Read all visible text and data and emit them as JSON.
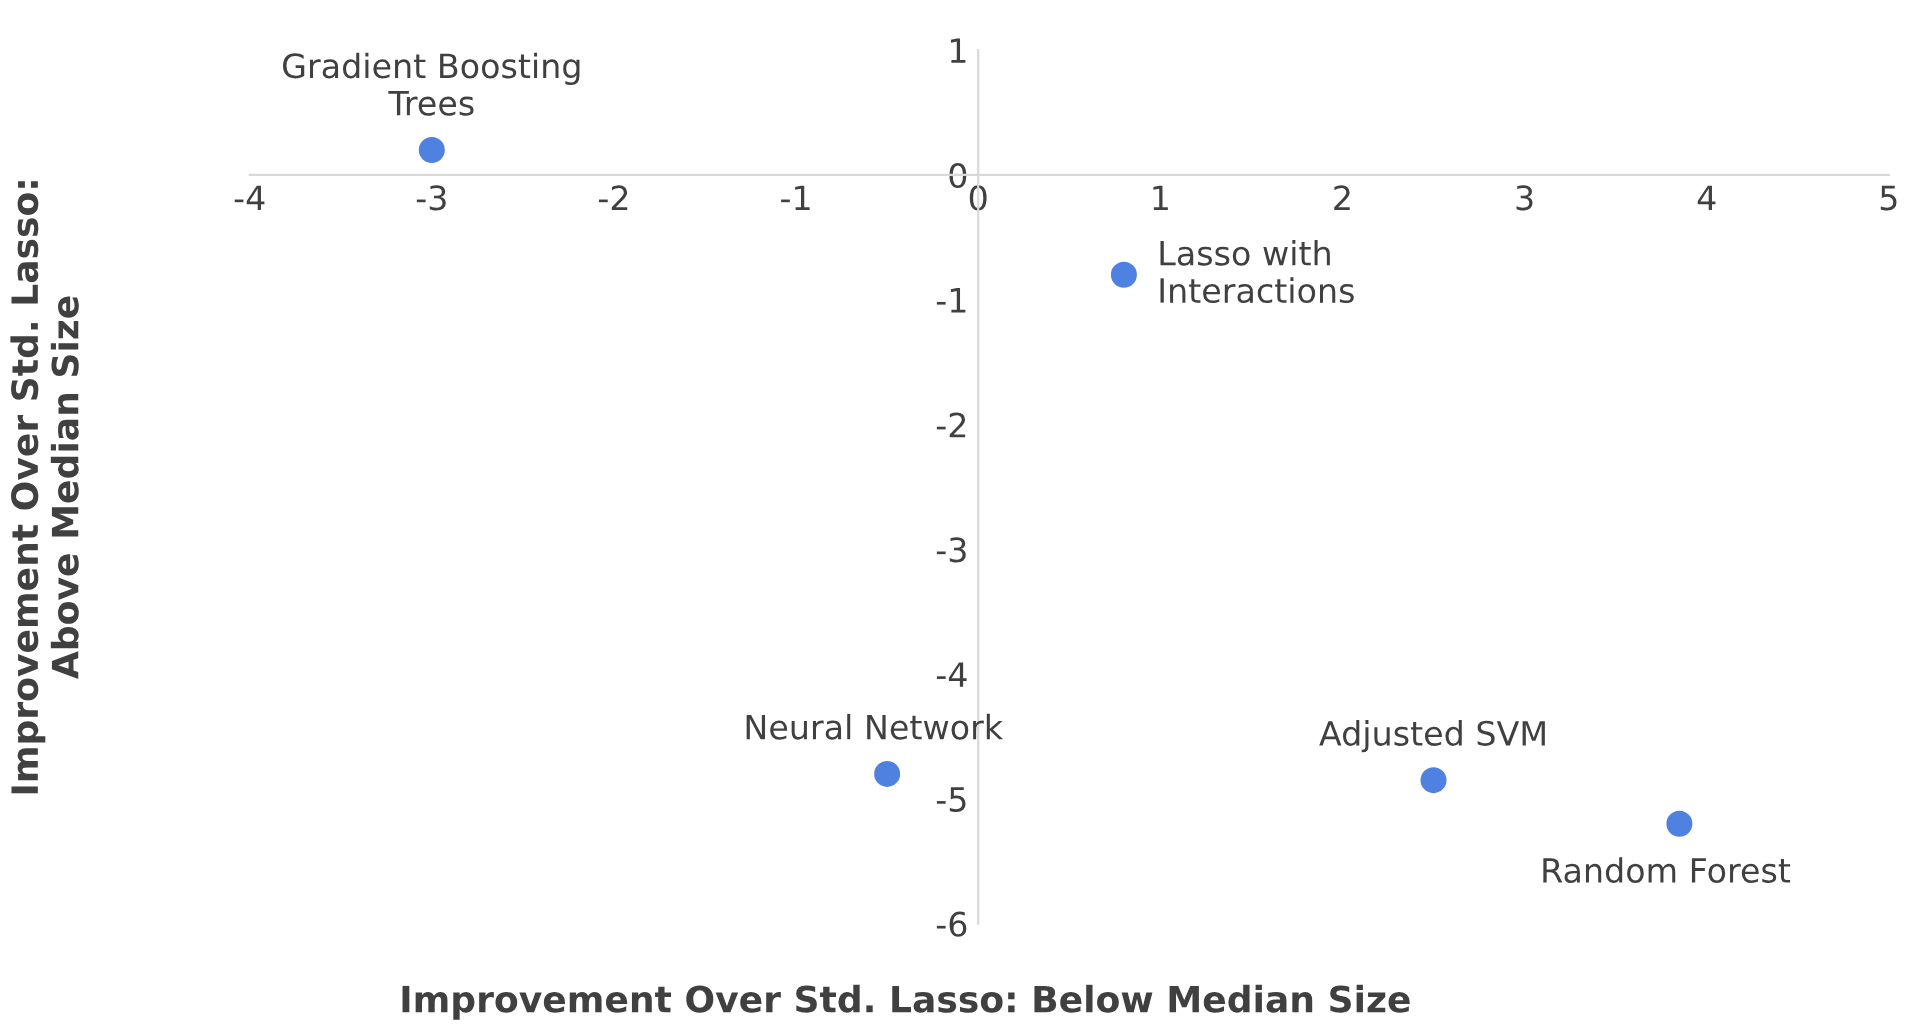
{
  "chart_data": {
    "type": "scatter",
    "xlabel": "Improvement Over Std. Lasso: Below Median Size",
    "ylabel": "Improvement Over Std. Lasso:\nAbove Median Size",
    "x": [
      -3,
      0.8,
      -0.5,
      2.5,
      3.85
    ],
    "series": [
      {
        "color": "#4f81e0",
        "values": [
          0.2,
          -0.8,
          -4.8,
          -4.85,
          -5.2
        ]
      }
    ],
    "annotations": [
      {
        "text": "Gradient Boosting\nTrees",
        "x": -3,
        "y": 0.2
      },
      {
        "text": "Lasso with\nInteractions",
        "x": 0.8,
        "y": -0.8
      },
      {
        "text": "Neural Network",
        "x": -0.5,
        "y": -4.8
      },
      {
        "text": "Adjusted SVM",
        "x": 2.5,
        "y": -4.85
      },
      {
        "text": "Random Forest",
        "x": 3.85,
        "y": -5.2
      }
    ],
    "xlim": [
      -4,
      5
    ],
    "ylim": [
      -6,
      1
    ],
    "xticks": [
      -4,
      -3,
      -2,
      -1,
      0,
      1,
      2,
      3,
      4,
      5
    ],
    "yticks": [
      -6,
      -5,
      -4,
      -3,
      -2,
      -1,
      0,
      1
    ],
    "marker": "circle",
    "grid": false,
    "legend": false
  }
}
